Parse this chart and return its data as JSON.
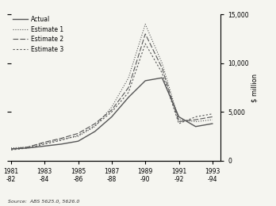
{
  "years": [
    1981,
    1982,
    1983,
    1984,
    1985,
    1986,
    1987,
    1988,
    1989,
    1990,
    1991,
    1992,
    1993
  ],
  "actual": [
    1200,
    1300,
    1500,
    1700,
    2000,
    3000,
    4500,
    6500,
    8200,
    8500,
    4500,
    3500,
    3800
  ],
  "estimate1": [
    1300,
    1400,
    1800,
    2200,
    2500,
    3500,
    5500,
    8500,
    14000,
    10000,
    4200,
    4000,
    4200
  ],
  "estimate2": [
    1200,
    1400,
    1900,
    2300,
    2800,
    3800,
    5200,
    7500,
    13000,
    9500,
    4000,
    4200,
    4500
  ],
  "estimate3": [
    1100,
    1300,
    1700,
    2100,
    2600,
    3600,
    5000,
    7000,
    12000,
    9000,
    3800,
    4500,
    4800
  ],
  "x_labels": [
    "1981\n-82",
    "1983\n-84",
    "1985\n-86",
    "1987\n-88",
    "1989\n-90",
    "1991\n-92",
    "1993\n-94"
  ],
  "x_tick_positions": [
    1981,
    1983,
    1985,
    1987,
    1989,
    1991,
    1993
  ],
  "ylim": [
    0,
    15000
  ],
  "yticks": [
    0,
    5000,
    10000,
    15000
  ],
  "ytick_labels": [
    "0",
    "5,000",
    "10,000",
    "15,000"
  ],
  "ylabel": "$ million",
  "source": "Source:  ABS 5625.0, 5626.0",
  "line_color": "#555555",
  "background_color": "#f5f5f0",
  "legend_labels": [
    "Actual",
    "Estimate 1",
    "Estimate 2",
    "Estimate 3"
  ]
}
